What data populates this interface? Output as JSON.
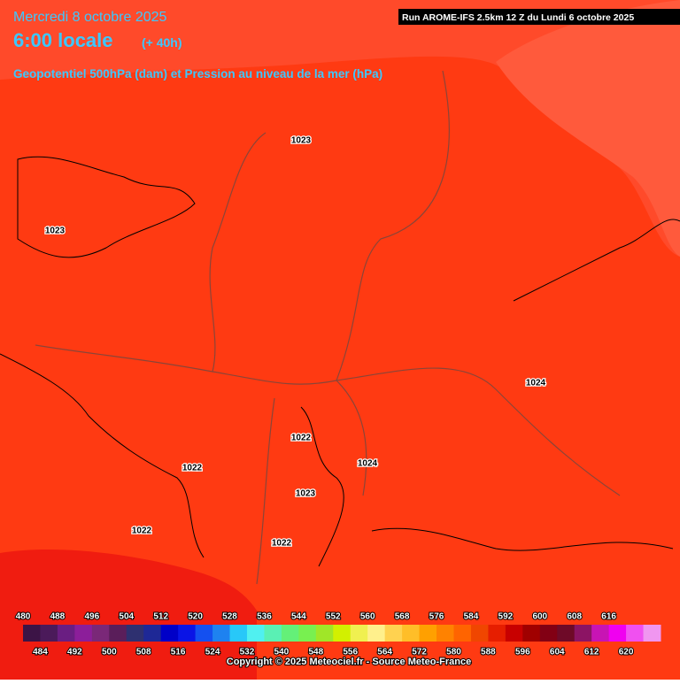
{
  "header": {
    "date": "Mercredi 8 octobre 2025",
    "time": "6:00 locale",
    "lead": "(+ 40h)",
    "run": "Run AROME-IFS 2.5km 12 Z du Lundi 6 octobre 2025",
    "subtitle": "Geopotentiel 500hPa (dam) et Pression au niveau de la mer (hPa)"
  },
  "pressure_labels": [
    "1023",
    "1023",
    "1024",
    "1022",
    "1022",
    "1024",
    "1023",
    "1022",
    "1022"
  ],
  "legend": {
    "top_labels": [
      480,
      488,
      496,
      504,
      512,
      520,
      528,
      536,
      544,
      552,
      560,
      568,
      576,
      584,
      592,
      600,
      608,
      616
    ],
    "bottom_labels": [
      484,
      492,
      500,
      508,
      516,
      524,
      532,
      540,
      548,
      556,
      564,
      572,
      580,
      588,
      596,
      604,
      612,
      620
    ],
    "colors": [
      "#3c1446",
      "#4b1a5a",
      "#6a1e82",
      "#8c1e9a",
      "#7a2878",
      "#5a1e5a",
      "#2e3070",
      "#1e2896",
      "#0000c8",
      "#0a14e6",
      "#1450f0",
      "#1e82f0",
      "#28c8f8",
      "#50f0f0",
      "#5af0b4",
      "#64f078",
      "#78f050",
      "#a0e628",
      "#d2f000",
      "#f0f050",
      "#fff08c",
      "#ffd250",
      "#ffbe28",
      "#ffa000",
      "#ff8200",
      "#ff6400",
      "#f04600",
      "#e61e00",
      "#c80000",
      "#a00000",
      "#820014",
      "#6e0a28",
      "#8c1464",
      "#c814b4",
      "#f000f0",
      "#f050f0",
      "#f096f0"
    ]
  },
  "copyright": "Copyright © 2025 Meteociel.fr - Source Meteo-France"
}
